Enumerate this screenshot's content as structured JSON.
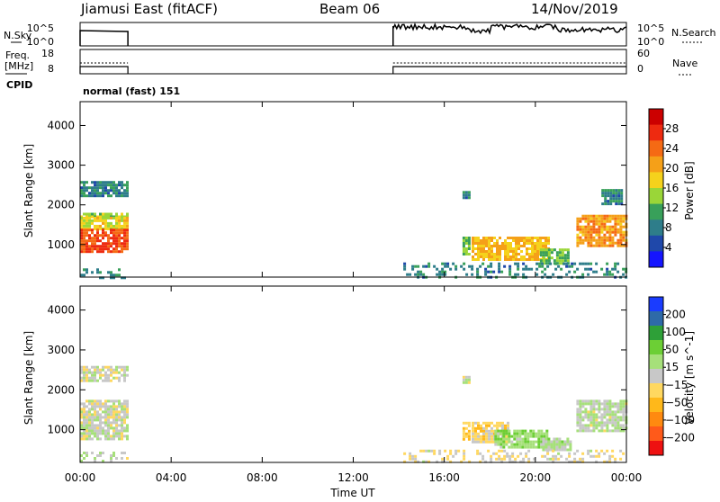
{
  "header": {
    "station": "Jiamusi East (fitACF)",
    "beam": "Beam 06",
    "date": "14/Nov/2019"
  },
  "strip_labels": {
    "nsky": "N.Sky",
    "freq_line1": "Freq.",
    "freq_line2": "[MHz]",
    "cpid": "CPID",
    "nsearch": "N.Search",
    "nave": "Nave",
    "nsky_top": "10^5",
    "nsky_bottom": "10^0",
    "freq_top": "18",
    "freq_bottom": "8",
    "nsearch_top": "10^5",
    "nsearch_bottom": "10^0",
    "nave_top": "60",
    "nave_bottom": "0",
    "cpid_text": "normal (fast) 151"
  },
  "colors": {
    "power_scale": [
      "#1515ff",
      "#1f48aa",
      "#2e7d8a",
      "#38a05a",
      "#9ad638",
      "#f5d21c",
      "#f5a018",
      "#f56a14",
      "#ee2a10",
      "#cc0000"
    ],
    "velocity_scale": [
      "#ee1111",
      "#ff5a1a",
      "#ff8a10",
      "#ffb81a",
      "#ffd860",
      "#c8c8c8",
      "#a6e07a",
      "#6ccf35",
      "#2ea038",
      "#2e6aa8",
      "#1a3cff"
    ],
    "trace": "#000000"
  },
  "chart_data": [
    {
      "type": "heatmap",
      "name": "power",
      "ylabel": "Slant Range [km]",
      "colorbar_label": "Power [dB]",
      "colorbar_ticks": [
        "28",
        "24",
        "20",
        "16",
        "12",
        "8",
        "4"
      ],
      "x_ticks": [
        "00:00",
        "04:00",
        "08:00",
        "12:00",
        "16:00",
        "20:00",
        "00:00"
      ],
      "y_ticks": [
        "1000",
        "2000",
        "3000",
        "4000"
      ],
      "xlim_hours": [
        0,
        24
      ],
      "ylim_km": [
        180,
        4600
      ],
      "regions": [
        {
          "t": [
            0.0,
            2.1
          ],
          "range_km": [
            2250,
            2600
          ],
          "value": 8
        },
        {
          "t": [
            0.0,
            2.1
          ],
          "range_km": [
            1700,
            1800
          ],
          "value": 14
        },
        {
          "t": [
            0.0,
            2.1
          ],
          "range_km": [
            1400,
            1700
          ],
          "value": 16
        },
        {
          "t": [
            0.0,
            2.1
          ],
          "range_km": [
            800,
            1400
          ],
          "value": 24
        },
        {
          "t": [
            0.0,
            2.1
          ],
          "range_km": [
            190,
            400
          ],
          "value": 8
        },
        {
          "t": [
            16.8,
            17.1
          ],
          "range_km": [
            2150,
            2350
          ],
          "value": 8
        },
        {
          "t": [
            16.8,
            17.1
          ],
          "range_km": [
            750,
            1200
          ],
          "value": 12
        },
        {
          "t": [
            17.2,
            20.6
          ],
          "range_km": [
            600,
            1200
          ],
          "value": 18
        },
        {
          "t": [
            20.2,
            21.5
          ],
          "range_km": [
            500,
            900
          ],
          "value": 12
        },
        {
          "t": [
            21.8,
            24.0
          ],
          "range_km": [
            1000,
            1750
          ],
          "value": 20
        },
        {
          "t": [
            22.9,
            23.8
          ],
          "range_km": [
            2000,
            2400
          ],
          "value": 8
        },
        {
          "t": [
            14.2,
            24.0
          ],
          "range_km": [
            190,
            550
          ],
          "value": 8
        }
      ]
    },
    {
      "type": "heatmap",
      "name": "velocity",
      "ylabel": "Slant Range [km]",
      "xlabel": "Time UT",
      "colorbar_label": "Velocity [m s^-1]",
      "colorbar_ticks": [
        "200",
        "100",
        "50",
        "15",
        "−15",
        "−50",
        "−100",
        "−200"
      ],
      "x_ticks": [
        "00:00",
        "04:00",
        "08:00",
        "12:00",
        "16:00",
        "20:00",
        "00:00"
      ],
      "y_ticks": [
        "1000",
        "2000",
        "3000",
        "4000"
      ],
      "xlim_hours": [
        0,
        24
      ],
      "ylim_km": [
        180,
        4600
      ],
      "regions": [
        {
          "t": [
            0.0,
            2.1
          ],
          "range_km": [
            2250,
            2600
          ],
          "value": 0
        },
        {
          "t": [
            0.0,
            2.1
          ],
          "range_km": [
            800,
            1750
          ],
          "value": 0
        },
        {
          "t": [
            0.0,
            2.1
          ],
          "range_km": [
            190,
            450
          ],
          "value": 20
        },
        {
          "t": [
            16.8,
            17.1
          ],
          "range_km": [
            2150,
            2350
          ],
          "value": 0
        },
        {
          "t": [
            16.8,
            17.1
          ],
          "range_km": [
            750,
            1200
          ],
          "value": -60
        },
        {
          "t": [
            17.2,
            18.8
          ],
          "range_km": [
            700,
            1200
          ],
          "value": -40
        },
        {
          "t": [
            18.2,
            20.5
          ],
          "range_km": [
            550,
            1000
          ],
          "value": 60
        },
        {
          "t": [
            20.3,
            21.5
          ],
          "range_km": [
            500,
            800
          ],
          "value": 30
        },
        {
          "t": [
            21.8,
            24.0
          ],
          "range_km": [
            1000,
            1750
          ],
          "value": 20
        },
        {
          "t": [
            14.2,
            24.0
          ],
          "range_km": [
            190,
            500
          ],
          "value": -20
        }
      ]
    }
  ]
}
